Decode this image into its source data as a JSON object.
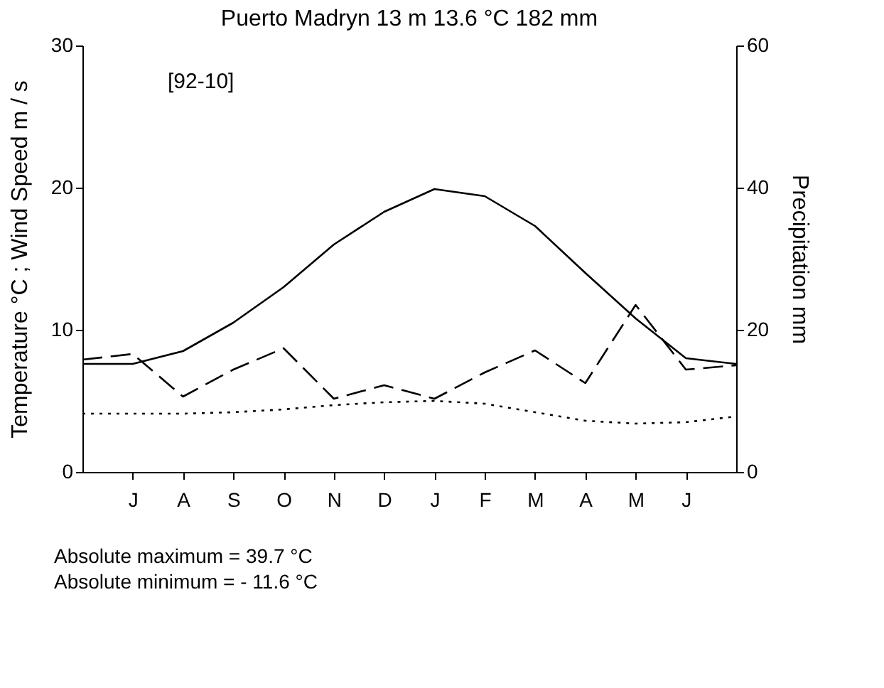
{
  "chart_data": {
    "type": "line",
    "title": "Puerto Madryn  13 m  13.6 °C     182 mm",
    "categories": [
      null,
      "J",
      "A",
      "S",
      "O",
      "N",
      "D",
      "J",
      "F",
      "M",
      "A",
      "M",
      "J",
      null
    ],
    "ylabel": "Temperature °C ; Wind Speed  m / s",
    "y2label": "Precipitation   mm",
    "ylim": [
      0,
      30
    ],
    "yticks": [
      0,
      10,
      20,
      30
    ],
    "y2lim": [
      0,
      60
    ],
    "y2ticks": [
      0,
      20,
      40,
      60
    ],
    "series": [
      {
        "color": "#000000",
        "line_style": "solid",
        "values": [
          7.6,
          7.6,
          8.5,
          10.5,
          13.0,
          16.0,
          18.3,
          19.9,
          19.4,
          17.3,
          14.0,
          10.8,
          8.0,
          7.6
        ]
      },
      {
        "color": "#000000",
        "line_style": "dashed",
        "axis": "y2",
        "values": [
          15.8,
          16.6,
          10.6,
          14.4,
          17.4,
          10.3,
          12.2,
          10.3,
          14.0,
          17.1,
          12.5,
          23.5,
          14.4,
          15.0
        ]
      },
      {
        "color": "#000000",
        "line_style": "dotted",
        "values": [
          4.1,
          4.1,
          4.1,
          4.2,
          4.4,
          4.7,
          4.9,
          5.0,
          4.8,
          4.2,
          3.6,
          3.4,
          3.5,
          3.9
        ]
      }
    ],
    "marker": "none",
    "grid": false,
    "annotations": [
      "[92-10]",
      "Absolute maximum =  39.7 °C",
      "Absolute minimum = - 11.6 °C"
    ]
  }
}
